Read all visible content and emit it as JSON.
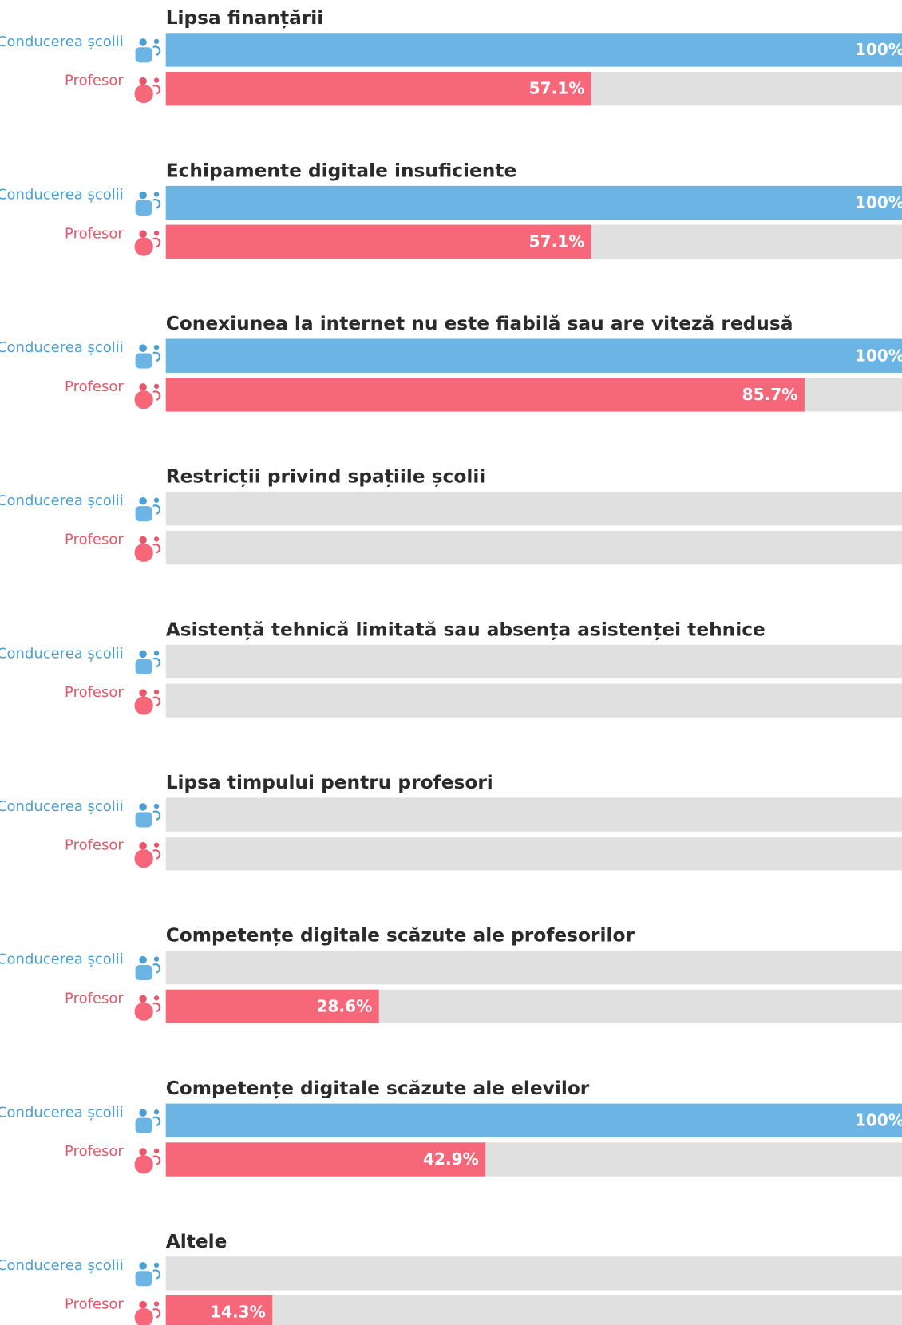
{
  "chart_data": {
    "type": "bar",
    "orientation": "horizontal",
    "categories": [
      "Lipsa finanțării",
      "Echipamente digitale insuficiente",
      "Conexiunea la internet nu este fiabilă sau are viteză redusă",
      "Restricții privind spațiile școlii",
      "Asistență tehnică limitată sau absența asistenței tehnice",
      "Lipsa timpului pentru profesori",
      "Competențe digitale scăzute ale profesorilor",
      "Competențe digitale scăzute ale elevilor",
      "Altele"
    ],
    "series": [
      {
        "name": "Conducerea școlii",
        "color": "#6cb4e4",
        "label_color": "#4a9fd4",
        "values": [
          100,
          100,
          100,
          0,
          0,
          0,
          0,
          100,
          0
        ],
        "value_labels": [
          "100%",
          "100%",
          "100%",
          null,
          null,
          null,
          null,
          "100%",
          null
        ]
      },
      {
        "name": "Profesor",
        "color": "#f7677a",
        "label_color": "#e8586b",
        "values": [
          57.1,
          57.1,
          85.7,
          0,
          0,
          0,
          28.6,
          42.9,
          14.3
        ],
        "value_labels": [
          "57.1%",
          "57.1%",
          "85.7%",
          null,
          null,
          null,
          "28.6%",
          "42.9%",
          "14.3%"
        ]
      }
    ],
    "xlim": [
      0,
      100
    ],
    "track_color": "#e0e0e0"
  }
}
